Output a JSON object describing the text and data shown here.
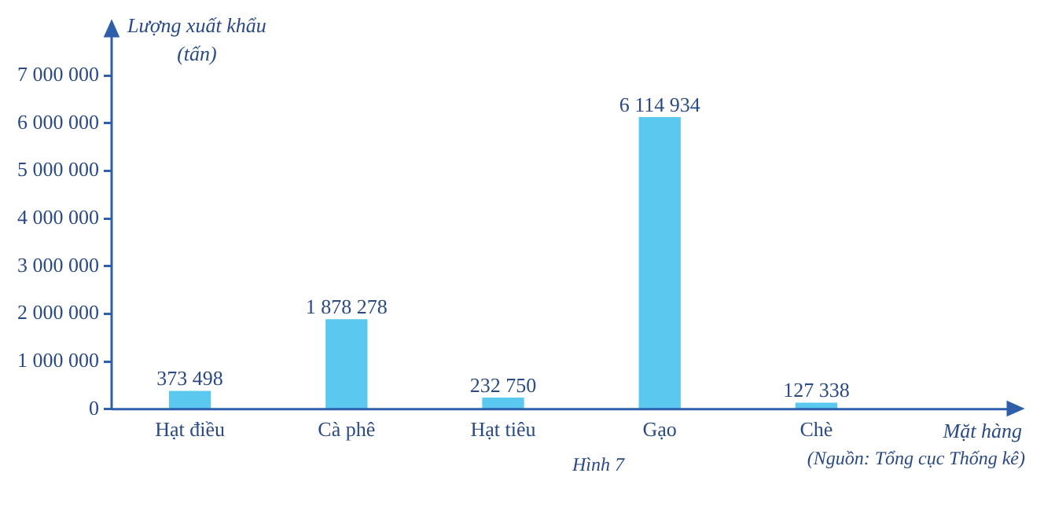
{
  "chart_data": {
    "type": "bar",
    "ylabel": "Lượng xuất khẩu (tấn)",
    "xlabel": "Mặt hàng",
    "categories": [
      "Hạt điều",
      "Cà phê",
      "Hạt tiêu",
      "Gạo",
      "Chè"
    ],
    "values": [
      373498,
      1878278,
      232750,
      6114934,
      127338
    ],
    "value_labels": [
      "373 498",
      "1 878 278",
      "232 750",
      "6 114 934",
      "127 338"
    ],
    "color": "#5bc8ef",
    "ylim": [
      0,
      7000000
    ],
    "yticks": [
      {
        "value": 0,
        "label": "0"
      },
      {
        "value": 1000000,
        "label": "1 000 000"
      },
      {
        "value": 2000000,
        "label": "2 000 000"
      },
      {
        "value": 3000000,
        "label": "3 000 000"
      },
      {
        "value": 4000000,
        "label": "4 000 000"
      },
      {
        "value": 5000000,
        "label": "5 000 000"
      },
      {
        "value": 6000000,
        "label": "6 000 000"
      },
      {
        "value": 7000000,
        "label": "7 000 000"
      }
    ],
    "grid": false,
    "legend": false,
    "annotations": [
      "Hình 7",
      "(Nguồn: Tổng cục Thống kê)"
    ]
  }
}
